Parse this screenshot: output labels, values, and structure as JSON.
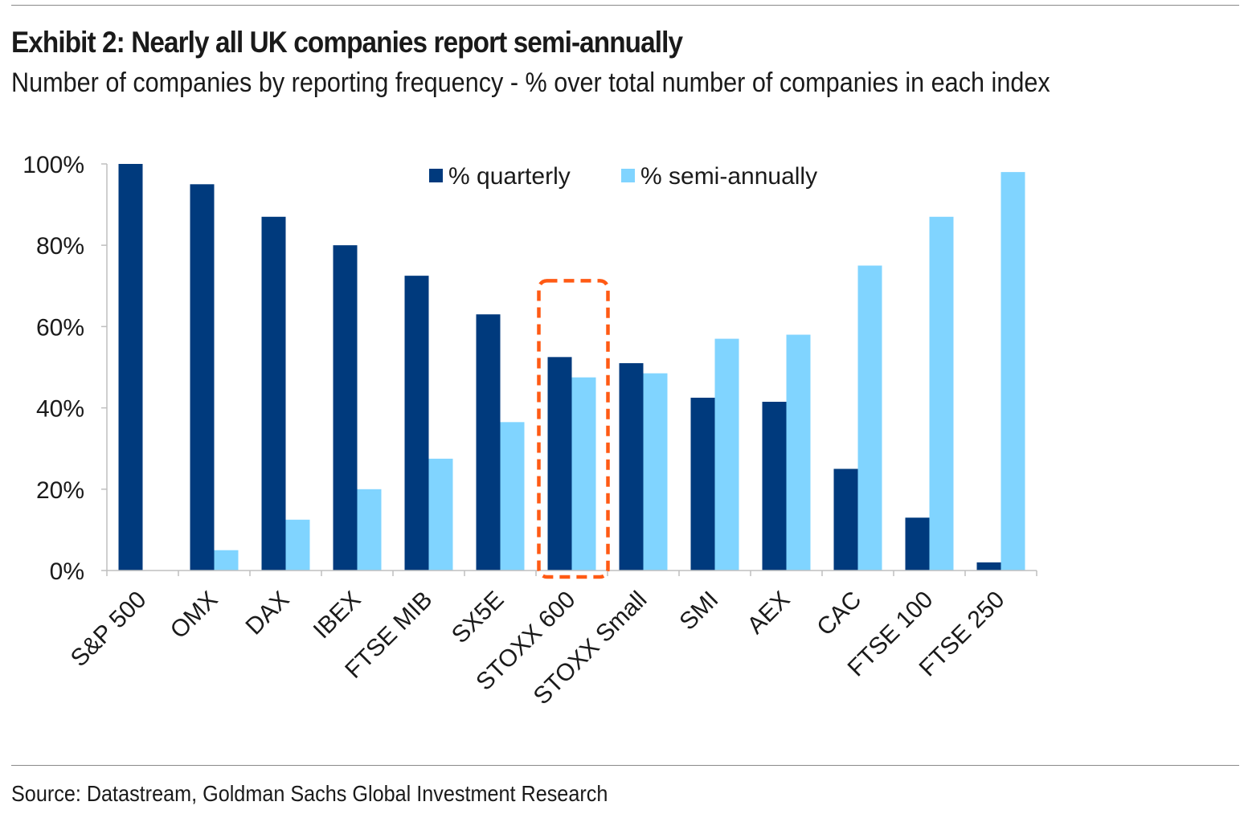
{
  "header": {
    "title": "Exhibit 2: Nearly all UK companies report semi-annually",
    "subtitle": "Number of companies by reporting frequency - % over total number of companies in each index"
  },
  "footer": {
    "source": "Source: Datastream, Goldman Sachs Global Investment Research"
  },
  "colors": {
    "quarterly": "#003a7d",
    "semi_annually": "#80d4ff",
    "highlight": "#ff5a14",
    "axis": "#bfbfbf"
  },
  "chart_data": {
    "type": "bar",
    "title": "Exhibit 2: Nearly all UK companies report semi-annually",
    "subtitle": "Number of companies by reporting frequency - % over total number of companies in each index",
    "xlabel": "",
    "ylabel": "",
    "ylim": [
      0,
      100
    ],
    "y_ticks": [
      "0%",
      "20%",
      "40%",
      "60%",
      "80%",
      "100%"
    ],
    "categories": [
      "S&P 500",
      "OMX",
      "DAX",
      "IBEX",
      "FTSE MIB",
      "SX5E",
      "STOXX 600",
      "STOXX Small",
      "SMI",
      "AEX",
      "CAC",
      "FTSE 100",
      "FTSE 250"
    ],
    "series": [
      {
        "name": "% quarterly",
        "values": [
          100,
          95,
          87,
          80,
          72.5,
          63,
          52.5,
          51,
          42.5,
          41.5,
          25,
          13,
          2
        ]
      },
      {
        "name": "% semi-annually",
        "values": [
          0,
          5,
          12.5,
          20,
          27.5,
          36.5,
          47.5,
          48.5,
          57,
          58,
          75,
          87,
          98
        ]
      }
    ],
    "highlight_category": "STOXX 600",
    "legend_position": "top-center",
    "grid": false
  }
}
